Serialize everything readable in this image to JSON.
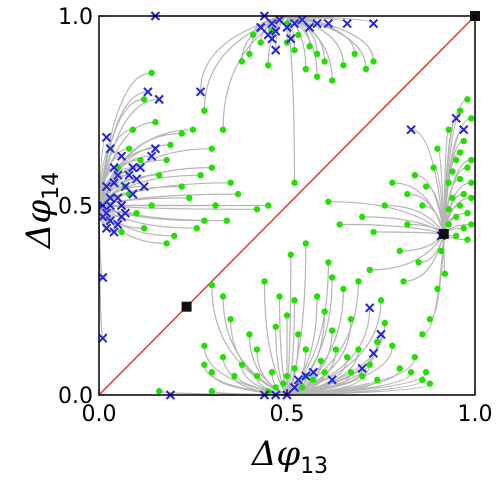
{
  "chart_data": {
    "type": "scatter",
    "title": "",
    "xlabel_symbol": "Δφ",
    "xlabel_sub": "13",
    "ylabel_symbol": "Δφ",
    "ylabel_sub": "14",
    "xlim": [
      0,
      1
    ],
    "ylim": [
      0,
      1
    ],
    "x_ticks": [
      0.0,
      0.5,
      1.0
    ],
    "x_tick_labels": [
      "0.0",
      "0.5",
      "1.0"
    ],
    "y_ticks": [
      0.0,
      0.5,
      1.0
    ],
    "y_tick_labels": [
      "0.0",
      "0.5",
      "1.0"
    ],
    "grid": false,
    "colors": {
      "trajectory": "#b5b5b5",
      "diagonal": "#e23a2a",
      "green_point": "#22e000",
      "blue_cross": "#2525d8",
      "fixed_point": "#111111"
    },
    "diagonal_line": {
      "from": [
        0,
        0
      ],
      "to": [
        1,
        1
      ]
    },
    "attractors": [
      [
        0.0,
        0.5
      ],
      [
        0.5,
        1.0
      ],
      [
        0.5,
        0.0
      ],
      [
        1.0,
        0.5
      ]
    ],
    "fixed_points": [
      {
        "x": 0.233,
        "y": 0.233
      },
      {
        "x": 0.917,
        "y": 0.425
      },
      {
        "x": 1.0,
        "y": 1.0
      }
    ],
    "series": [
      {
        "marker": "dot",
        "points": [
          [
            0.14,
            0.85
          ],
          [
            0.12,
            0.78
          ],
          [
            0.15,
            0.72
          ],
          [
            0.18,
            0.62
          ],
          [
            0.22,
            0.69
          ],
          [
            0.25,
            0.7
          ],
          [
            0.28,
            0.75
          ],
          [
            0.33,
            0.7
          ],
          [
            0.3,
            0.6
          ],
          [
            0.22,
            0.55
          ],
          [
            0.35,
            0.56
          ],
          [
            0.37,
            0.53
          ],
          [
            0.34,
            0.46
          ],
          [
            0.28,
            0.46
          ],
          [
            0.2,
            0.42
          ],
          [
            0.18,
            0.4
          ],
          [
            0.1,
            0.48
          ],
          [
            0.14,
            0.5
          ],
          [
            0.07,
            0.55
          ],
          [
            0.08,
            0.65
          ],
          [
            0.05,
            0.6
          ],
          [
            0.09,
            0.7
          ],
          [
            0.11,
            0.62
          ],
          [
            0.16,
            0.58
          ],
          [
            0.24,
            0.52
          ],
          [
            0.26,
            0.44
          ],
          [
            0.42,
            0.49
          ],
          [
            0.45,
            0.5
          ],
          [
            0.31,
            0.5
          ],
          [
            0.12,
            0.44
          ],
          [
            0.3,
            0.65
          ],
          [
            0.19,
            0.66
          ],
          [
            0.27,
            0.58
          ],
          [
            0.06,
            0.43
          ],
          [
            0.41,
            0.95
          ],
          [
            0.4,
            0.9
          ],
          [
            0.43,
            0.93
          ],
          [
            0.46,
            0.96
          ],
          [
            0.5,
            0.98
          ],
          [
            0.53,
            0.95
          ],
          [
            0.56,
            0.92
          ],
          [
            0.6,
            0.88
          ],
          [
            0.58,
            0.9
          ],
          [
            0.52,
            0.91
          ],
          [
            0.55,
            0.86
          ],
          [
            0.58,
            0.84
          ],
          [
            0.62,
            0.83
          ],
          [
            0.65,
            0.87
          ],
          [
            0.71,
            0.86
          ],
          [
            0.73,
            0.88
          ],
          [
            0.68,
            0.9
          ],
          [
            0.45,
            0.87
          ],
          [
            0.38,
            0.88
          ],
          [
            0.5,
            0.93
          ],
          [
            0.3,
            0.29
          ],
          [
            0.33,
            0.26
          ],
          [
            0.35,
            0.2
          ],
          [
            0.4,
            0.16
          ],
          [
            0.28,
            0.13
          ],
          [
            0.33,
            0.1
          ],
          [
            0.28,
            0.08
          ],
          [
            0.3,
            0.06
          ],
          [
            0.36,
            0.05
          ],
          [
            0.42,
            0.05
          ],
          [
            0.46,
            0.06
          ],
          [
            0.5,
            0.05
          ],
          [
            0.52,
            0.07
          ],
          [
            0.55,
            0.05
          ],
          [
            0.57,
            0.04
          ],
          [
            0.6,
            0.06
          ],
          [
            0.54,
            0.02
          ],
          [
            0.49,
            0.03
          ],
          [
            0.47,
            0.02
          ],
          [
            0.45,
            0.01
          ],
          [
            0.16,
            0.01
          ],
          [
            0.3,
            0.01
          ],
          [
            0.59,
            0.09
          ],
          [
            0.63,
            0.12
          ],
          [
            0.66,
            0.1
          ],
          [
            0.69,
            0.12
          ],
          [
            0.72,
            0.08
          ],
          [
            0.67,
            0.06
          ],
          [
            0.7,
            0.05
          ],
          [
            0.74,
            0.04
          ],
          [
            0.62,
            0.17
          ],
          [
            0.6,
            0.22
          ],
          [
            0.52,
            0.25
          ],
          [
            0.5,
            0.21
          ],
          [
            0.47,
            0.18
          ],
          [
            0.48,
            0.26
          ],
          [
            0.44,
            0.3
          ],
          [
            0.51,
            0.37
          ],
          [
            0.55,
            0.4
          ],
          [
            0.61,
            0.35
          ],
          [
            0.64,
            0.45
          ],
          [
            0.7,
            0.47
          ],
          [
            0.73,
            0.43
          ],
          [
            0.76,
            0.5
          ],
          [
            0.78,
            0.56
          ],
          [
            0.82,
            0.53
          ],
          [
            0.84,
            0.58
          ],
          [
            0.87,
            0.55
          ],
          [
            0.86,
            0.5
          ],
          [
            0.82,
            0.45
          ],
          [
            0.89,
            0.6
          ],
          [
            0.9,
            0.65
          ],
          [
            0.93,
            0.7
          ],
          [
            0.96,
            0.75
          ],
          [
            0.98,
            0.78
          ],
          [
            0.99,
            0.73
          ],
          [
            0.97,
            0.67
          ],
          [
            0.95,
            0.62
          ],
          [
            0.98,
            0.6
          ],
          [
            0.99,
            0.56
          ],
          [
            0.97,
            0.53
          ],
          [
            0.96,
            0.5
          ],
          [
            0.98,
            0.48
          ],
          [
            0.99,
            0.45
          ],
          [
            0.97,
            0.44
          ],
          [
            0.95,
            0.47
          ],
          [
            0.94,
            0.52
          ],
          [
            0.93,
            0.49
          ],
          [
            0.96,
            0.57
          ],
          [
            0.99,
            0.52
          ],
          [
            0.98,
            0.41
          ],
          [
            0.92,
            0.32
          ],
          [
            0.9,
            0.28
          ],
          [
            0.88,
            0.2
          ],
          [
            0.86,
            0.16
          ],
          [
            0.84,
            0.1
          ],
          [
            0.87,
            0.06
          ],
          [
            0.88,
            0.03
          ],
          [
            0.86,
            0.04
          ],
          [
            0.83,
            0.06
          ],
          [
            0.78,
            0.13
          ],
          [
            0.74,
            0.14
          ],
          [
            0.8,
            0.07
          ],
          [
            0.76,
            0.19
          ],
          [
            0.81,
            0.3
          ],
          [
            0.85,
            0.35
          ],
          [
            0.91,
            0.38
          ],
          [
            0.69,
            0.3
          ],
          [
            0.72,
            0.33
          ],
          [
            0.65,
            0.28
          ],
          [
            0.67,
            0.2
          ],
          [
            0.75,
            0.25
          ],
          [
            0.8,
            0.38
          ],
          [
            0.55,
            0.12
          ],
          [
            0.53,
            0.16
          ],
          [
            0.58,
            0.26
          ],
          [
            0.62,
            0.31
          ],
          [
            0.42,
            0.12
          ],
          [
            0.38,
            0.08
          ],
          [
            0.93,
            0.56
          ],
          [
            0.94,
            0.59
          ],
          [
            0.99,
            0.62
          ],
          [
            0.96,
            0.64
          ],
          [
            0.93,
            0.45
          ],
          [
            0.95,
            0.42
          ],
          [
            0.61,
            0.51
          ],
          [
            0.52,
            0.56
          ],
          [
            0.08,
            0.53
          ]
        ]
      },
      {
        "marker": "cross",
        "points": [
          [
            0.15,
            1.0
          ],
          [
            0.13,
            0.8
          ],
          [
            0.16,
            0.78
          ],
          [
            0.27,
            0.8
          ],
          [
            0.02,
            0.68
          ],
          [
            0.03,
            0.65
          ],
          [
            0.04,
            0.6
          ],
          [
            0.05,
            0.58
          ],
          [
            0.06,
            0.63
          ],
          [
            0.04,
            0.56
          ],
          [
            0.02,
            0.55
          ],
          [
            0.03,
            0.52
          ],
          [
            0.01,
            0.5
          ],
          [
            0.02,
            0.48
          ],
          [
            0.03,
            0.46
          ],
          [
            0.05,
            0.45
          ],
          [
            0.04,
            0.43
          ],
          [
            0.02,
            0.44
          ],
          [
            0.01,
            0.47
          ],
          [
            0.03,
            0.5
          ],
          [
            0.05,
            0.52
          ],
          [
            0.06,
            0.5
          ],
          [
            0.07,
            0.55
          ],
          [
            0.08,
            0.58
          ],
          [
            0.09,
            0.6
          ],
          [
            0.1,
            0.57
          ],
          [
            0.11,
            0.6
          ],
          [
            0.14,
            0.63
          ],
          [
            0.15,
            0.65
          ],
          [
            0.12,
            0.55
          ],
          [
            0.09,
            0.53
          ],
          [
            0.07,
            0.48
          ],
          [
            0.06,
            0.47
          ],
          [
            0.01,
            0.31
          ],
          [
            0.01,
            0.15
          ],
          [
            0.19,
            0.0
          ],
          [
            0.44,
            1.0
          ],
          [
            0.46,
            0.98
          ],
          [
            0.48,
            0.99
          ],
          [
            0.5,
            0.97
          ],
          [
            0.52,
            0.98
          ],
          [
            0.54,
            0.99
          ],
          [
            0.56,
            0.97
          ],
          [
            0.43,
            0.97
          ],
          [
            0.45,
            0.95
          ],
          [
            0.47,
            0.96
          ],
          [
            0.58,
            0.98
          ],
          [
            0.61,
            0.98
          ],
          [
            0.66,
            0.98
          ],
          [
            0.73,
            0.98
          ],
          [
            0.46,
            0.94
          ],
          [
            0.47,
            0.91
          ],
          [
            0.51,
            0.94
          ],
          [
            0.5,
            0.0
          ],
          [
            0.47,
            0.0
          ],
          [
            0.44,
            0.0
          ],
          [
            0.52,
            0.02
          ],
          [
            0.53,
            0.04
          ],
          [
            0.55,
            0.05
          ],
          [
            0.57,
            0.06
          ],
          [
            0.62,
            0.04
          ],
          [
            0.7,
            0.07
          ],
          [
            0.73,
            0.11
          ],
          [
            0.75,
            0.16
          ],
          [
            0.72,
            0.23
          ],
          [
            0.91,
            0.42
          ],
          [
            0.95,
            0.73
          ],
          [
            0.97,
            0.7
          ],
          [
            0.83,
            0.7
          ]
        ]
      }
    ]
  }
}
